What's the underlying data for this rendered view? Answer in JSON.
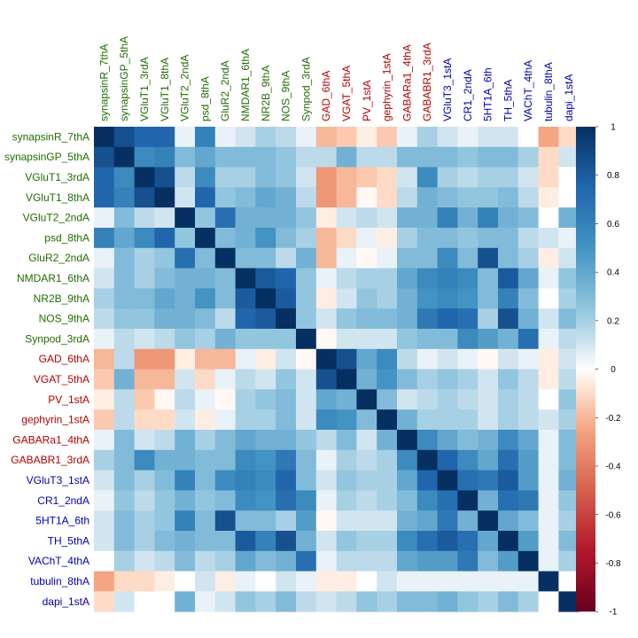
{
  "chart_data": {
    "type": "heatmap",
    "variables": [
      {
        "name": "synapsinR_7thA",
        "group": "green"
      },
      {
        "name": "synapsinGP_5thA",
        "group": "green"
      },
      {
        "name": "VGluT1_3rdA",
        "group": "green"
      },
      {
        "name": "VGluT1_8thA",
        "group": "green"
      },
      {
        "name": "VGluT2_2ndA",
        "group": "green"
      },
      {
        "name": "psd_8thA",
        "group": "green"
      },
      {
        "name": "GluR2_2ndA",
        "group": "green"
      },
      {
        "name": "NMDAR1_6thA",
        "group": "green"
      },
      {
        "name": "NR2B_9thA",
        "group": "green"
      },
      {
        "name": "NOS_9thA",
        "group": "green"
      },
      {
        "name": "Synpod_3rdA",
        "group": "green"
      },
      {
        "name": "GAD_6thA",
        "group": "red"
      },
      {
        "name": "VGAT_5thA",
        "group": "red"
      },
      {
        "name": "PV_1stA",
        "group": "red"
      },
      {
        "name": "gephyrin_1stA",
        "group": "red"
      },
      {
        "name": "GABARa1_4thA",
        "group": "red"
      },
      {
        "name": "GABABR1_3rdA",
        "group": "red"
      },
      {
        "name": "VGluT3_1stA",
        "group": "blue"
      },
      {
        "name": "CR1_2ndA",
        "group": "blue"
      },
      {
        "name": "5HT1A_6th",
        "group": "blue"
      },
      {
        "name": "TH_5thA",
        "group": "blue"
      },
      {
        "name": "VAChT_4thA",
        "group": "blue"
      },
      {
        "name": "tubulin_8thA",
        "group": "blue"
      },
      {
        "name": "dapi_1stA",
        "group": "blue"
      }
    ],
    "group_colors": {
      "green": "#1f6e00",
      "red": "#b50000",
      "blue": "#0000b0"
    },
    "matrix": [
      [
        1,
        0.85,
        0.75,
        0.75,
        0.05,
        0.6,
        0.05,
        0.1,
        0.2,
        0.15,
        0.05,
        -0.2,
        -0.15,
        -0.05,
        -0.15,
        0.05,
        0.2,
        0.1,
        0.05,
        0.1,
        0.1,
        0,
        -0.25,
        -0.1
      ],
      [
        0.85,
        1,
        0.55,
        0.6,
        0.3,
        0.4,
        0.3,
        0.3,
        0.3,
        0.25,
        0.15,
        0.15,
        0.35,
        0.15,
        0.15,
        0.3,
        0.3,
        0.3,
        0.25,
        0.3,
        0.3,
        0.2,
        -0.1,
        0.1
      ],
      [
        0.75,
        0.55,
        1,
        0.85,
        0.15,
        0.55,
        0.2,
        0.2,
        0.3,
        0.25,
        0.1,
        -0.3,
        -0.2,
        -0.15,
        -0.1,
        0.1,
        0.55,
        0.2,
        0.15,
        0.2,
        0.2,
        0.1,
        -0.1,
        0
      ],
      [
        0.75,
        0.6,
        0.85,
        1,
        0.1,
        0.75,
        0.25,
        0.3,
        0.4,
        0.35,
        0.15,
        -0.3,
        -0.2,
        -0.02,
        -0.1,
        0.15,
        0.35,
        0.3,
        0.25,
        0.25,
        0.3,
        0.15,
        -0.05,
        0
      ],
      [
        0.05,
        0.3,
        0.15,
        0.1,
        1,
        0.25,
        0.7,
        0.35,
        0.35,
        0.35,
        0.25,
        -0.05,
        0.1,
        0.15,
        0.1,
        0.35,
        0.35,
        0.6,
        0.35,
        0.6,
        0.35,
        0.3,
        0,
        0.35
      ],
      [
        0.6,
        0.4,
        0.55,
        0.75,
        0.25,
        1,
        0.3,
        0.35,
        0.5,
        0.3,
        0.2,
        -0.2,
        -0.1,
        0.05,
        -0.05,
        0.2,
        0.3,
        0.3,
        0.25,
        0.3,
        0.3,
        0.15,
        0.1,
        0.05
      ],
      [
        0.05,
        0.3,
        0.2,
        0.25,
        0.7,
        0.3,
        1,
        0.3,
        0.3,
        0.15,
        0.35,
        -0.2,
        0.05,
        -0.02,
        0.05,
        0.3,
        0.3,
        0.55,
        0.3,
        0.85,
        0.3,
        0.2,
        -0.05,
        0.1
      ],
      [
        0.1,
        0.3,
        0.2,
        0.3,
        0.35,
        0.35,
        0.3,
        1,
        0.8,
        0.75,
        0.25,
        0.05,
        0.15,
        0.2,
        0.2,
        0.4,
        0.55,
        0.6,
        0.55,
        0.3,
        0.8,
        0.4,
        0.05,
        0.25
      ],
      [
        0.2,
        0.3,
        0.3,
        0.4,
        0.35,
        0.5,
        0.3,
        0.8,
        1,
        0.8,
        0.25,
        -0.05,
        0.1,
        0.25,
        0.2,
        0.35,
        0.5,
        0.55,
        0.5,
        0.3,
        0.6,
        0.3,
        0,
        0.2
      ],
      [
        0.15,
        0.25,
        0.25,
        0.35,
        0.35,
        0.3,
        0.15,
        0.75,
        0.8,
        1,
        0.25,
        0.1,
        0.25,
        0.3,
        0.3,
        0.35,
        0.65,
        0.75,
        0.7,
        0.2,
        0.85,
        0.35,
        0.1,
        0.3
      ],
      [
        0.05,
        0.15,
        0.1,
        0.15,
        0.25,
        0.2,
        0.35,
        0.25,
        0.25,
        0.25,
        1,
        -0.02,
        0.1,
        0.1,
        0.1,
        0.25,
        0.3,
        0.3,
        0.55,
        0.45,
        0.35,
        0.7,
        0.05,
        0.15
      ],
      [
        -0.2,
        0.15,
        -0.3,
        -0.3,
        -0.05,
        -0.2,
        -0.2,
        0.05,
        -0.05,
        0.1,
        -0.02,
        1,
        0.85,
        0.4,
        0.55,
        0.15,
        0.05,
        0.1,
        0.05,
        -0.02,
        0.1,
        0.05,
        -0.05,
        0.1
      ],
      [
        -0.15,
        0.35,
        -0.2,
        -0.2,
        0.1,
        -0.1,
        0.05,
        0.15,
        0.1,
        0.25,
        0.1,
        0.85,
        1,
        0.35,
        0.5,
        0.3,
        0.2,
        0.25,
        0.2,
        0.1,
        0.25,
        0.15,
        -0.05,
        0.15
      ],
      [
        -0.05,
        0.15,
        -0.15,
        -0.02,
        0.15,
        0.05,
        -0.02,
        0.2,
        0.25,
        0.3,
        0.1,
        0.4,
        0.35,
        1,
        0.3,
        0.1,
        0.15,
        0.2,
        0.15,
        0.1,
        0.2,
        0.15,
        0,
        0.25
      ],
      [
        -0.15,
        0.15,
        -0.1,
        -0.1,
        0.1,
        -0.05,
        0.05,
        0.2,
        0.2,
        0.3,
        0.1,
        0.55,
        0.5,
        0.3,
        1,
        0.35,
        0.2,
        0.2,
        0.2,
        0.1,
        0.2,
        0.15,
        0.1,
        0.2
      ],
      [
        0.05,
        0.3,
        0.1,
        0.15,
        0.35,
        0.2,
        0.3,
        0.4,
        0.35,
        0.35,
        0.25,
        0.15,
        0.3,
        0.1,
        0.35,
        1,
        0.55,
        0.4,
        0.3,
        0.35,
        0.55,
        0.4,
        0.05,
        0.3
      ],
      [
        0.2,
        0.3,
        0.55,
        0.35,
        0.35,
        0.3,
        0.3,
        0.55,
        0.5,
        0.65,
        0.3,
        0.05,
        0.2,
        0.15,
        0.2,
        0.55,
        1,
        0.75,
        0.55,
        0.4,
        0.7,
        0.45,
        0.05,
        0.3
      ],
      [
        0.1,
        0.3,
        0.2,
        0.3,
        0.6,
        0.3,
        0.55,
        0.6,
        0.55,
        0.75,
        0.3,
        0.1,
        0.25,
        0.2,
        0.2,
        0.4,
        0.75,
        1,
        0.7,
        0.65,
        0.8,
        0.45,
        0.05,
        0.35
      ],
      [
        0.05,
        0.25,
        0.15,
        0.25,
        0.35,
        0.25,
        0.3,
        0.55,
        0.5,
        0.7,
        0.55,
        0.05,
        0.2,
        0.15,
        0.2,
        0.3,
        0.55,
        0.7,
        1,
        0.35,
        0.7,
        0.65,
        0.05,
        0.25
      ],
      [
        0.1,
        0.3,
        0.2,
        0.25,
        0.6,
        0.3,
        0.85,
        0.3,
        0.3,
        0.2,
        0.45,
        -0.02,
        0.1,
        0.1,
        0.1,
        0.35,
        0.4,
        0.65,
        0.35,
        1,
        0.4,
        0.3,
        0.05,
        0.2
      ],
      [
        0.1,
        0.3,
        0.2,
        0.3,
        0.35,
        0.3,
        0.3,
        0.8,
        0.6,
        0.85,
        0.35,
        0.1,
        0.25,
        0.2,
        0.2,
        0.55,
        0.7,
        0.8,
        0.7,
        0.4,
        1,
        0.45,
        0.05,
        0.3
      ],
      [
        0,
        0.2,
        0.1,
        0.15,
        0.3,
        0.15,
        0.2,
        0.4,
        0.3,
        0.35,
        0.7,
        0.05,
        0.15,
        0.15,
        0.15,
        0.4,
        0.45,
        0.45,
        0.65,
        0.3,
        0.45,
        1,
        0.05,
        0.2
      ],
      [
        -0.25,
        -0.1,
        -0.1,
        -0.05,
        0,
        0.1,
        -0.05,
        0.05,
        0,
        0.1,
        0.05,
        -0.05,
        -0.05,
        0,
        0.1,
        0.05,
        0.05,
        0.05,
        0.05,
        0.05,
        0.05,
        0.05,
        1,
        0
      ],
      [
        -0.1,
        0.1,
        0,
        0,
        0.35,
        0.05,
        0.1,
        0.25,
        0.2,
        0.3,
        0.15,
        0.1,
        0.15,
        0.25,
        0.2,
        0.3,
        0.3,
        0.35,
        0.25,
        0.2,
        0.3,
        0.2,
        0,
        1
      ]
    ],
    "color_scale": {
      "min": -1,
      "max": 1,
      "ticks": [
        "1",
        "0.8",
        "0.6",
        "0.4",
        "0.2",
        "0",
        "-0.2",
        "-0.4",
        "-0.6",
        "-0.8",
        "-1"
      ],
      "stops": [
        {
          "v": -1,
          "c": "#67001f"
        },
        {
          "v": -0.75,
          "c": "#b2182b"
        },
        {
          "v": -0.5,
          "c": "#d6604d"
        },
        {
          "v": -0.25,
          "c": "#f4a582"
        },
        {
          "v": -0.1,
          "c": "#fddbc7"
        },
        {
          "v": 0,
          "c": "#ffffff"
        },
        {
          "v": 0.1,
          "c": "#d1e5f0"
        },
        {
          "v": 0.25,
          "c": "#92c5de"
        },
        {
          "v": 0.5,
          "c": "#4393c3"
        },
        {
          "v": 0.75,
          "c": "#2166ac"
        },
        {
          "v": 1,
          "c": "#053061"
        }
      ]
    },
    "legend_position": "right"
  }
}
